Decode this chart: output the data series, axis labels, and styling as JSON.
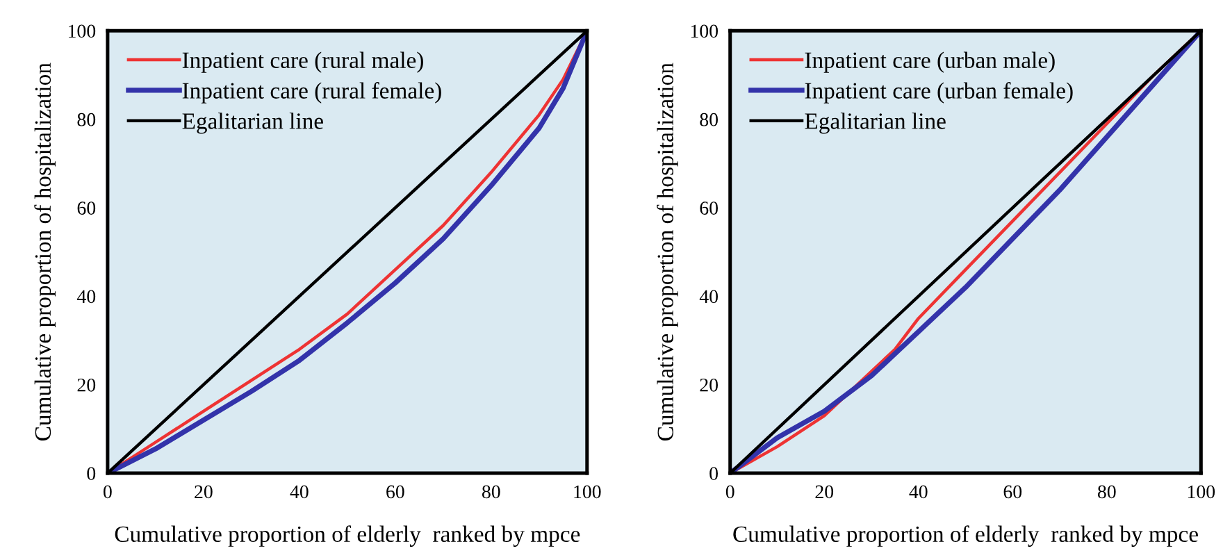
{
  "chart_data": [
    {
      "type": "line",
      "xlabel": "Cumulative proportion of elderly  ranked by mpce",
      "ylabel": "Cumulative proportion of hospitalization",
      "xlim": [
        0,
        100
      ],
      "ylim": [
        0,
        100
      ],
      "xticks": [
        0,
        20,
        40,
        60,
        80,
        100
      ],
      "yticks": [
        0,
        20,
        40,
        60,
        80,
        100
      ],
      "grid": false,
      "legend": "top left",
      "series": [
        {
          "name": "Inpatient care (rural male)",
          "color": "#ee3333",
          "x": [
            0,
            10,
            20,
            30,
            40,
            50,
            60,
            70,
            80,
            90,
            95,
            100
          ],
          "values": [
            0,
            7,
            14,
            21,
            28,
            36,
            46,
            56,
            68,
            81,
            89,
            100
          ]
        },
        {
          "name": "Inpatient care (rural female)",
          "color": "#3333aa",
          "x": [
            0,
            10,
            20,
            30,
            40,
            50,
            60,
            70,
            80,
            90,
            95,
            100
          ],
          "values": [
            0,
            5.5,
            12,
            18.5,
            25.5,
            34,
            43,
            53,
            65,
            78,
            87,
            100
          ]
        },
        {
          "name": "Egalitarian line",
          "color": "#000000",
          "x": [
            0,
            100
          ],
          "values": [
            0,
            100
          ]
        }
      ]
    },
    {
      "type": "line",
      "xlabel": "Cumulative proportion of elderly  ranked by mpce",
      "ylabel": "Cumulative proportion of hospitalization",
      "xlim": [
        0,
        100
      ],
      "ylim": [
        0,
        100
      ],
      "xticks": [
        0,
        20,
        40,
        60,
        80,
        100
      ],
      "yticks": [
        0,
        20,
        40,
        60,
        80,
        100
      ],
      "grid": false,
      "legend": "top left",
      "series": [
        {
          "name": "Inpatient care (urban male)",
          "color": "#ee3333",
          "x": [
            0,
            10,
            20,
            30,
            35,
            40,
            50,
            60,
            70,
            80,
            90,
            100
          ],
          "values": [
            0,
            6,
            13,
            23,
            28,
            35,
            46,
            57,
            68,
            79,
            90,
            100
          ]
        },
        {
          "name": "Inpatient care (urban female)",
          "color": "#3333aa",
          "x": [
            0,
            10,
            20,
            30,
            40,
            50,
            60,
            70,
            80,
            90,
            100
          ],
          "values": [
            0,
            8,
            14,
            22,
            32,
            42,
            53,
            64,
            76,
            88,
            100
          ]
        },
        {
          "name": "Egalitarian line",
          "color": "#000000",
          "x": [
            0,
            100
          ],
          "values": [
            0,
            100
          ]
        }
      ]
    }
  ]
}
